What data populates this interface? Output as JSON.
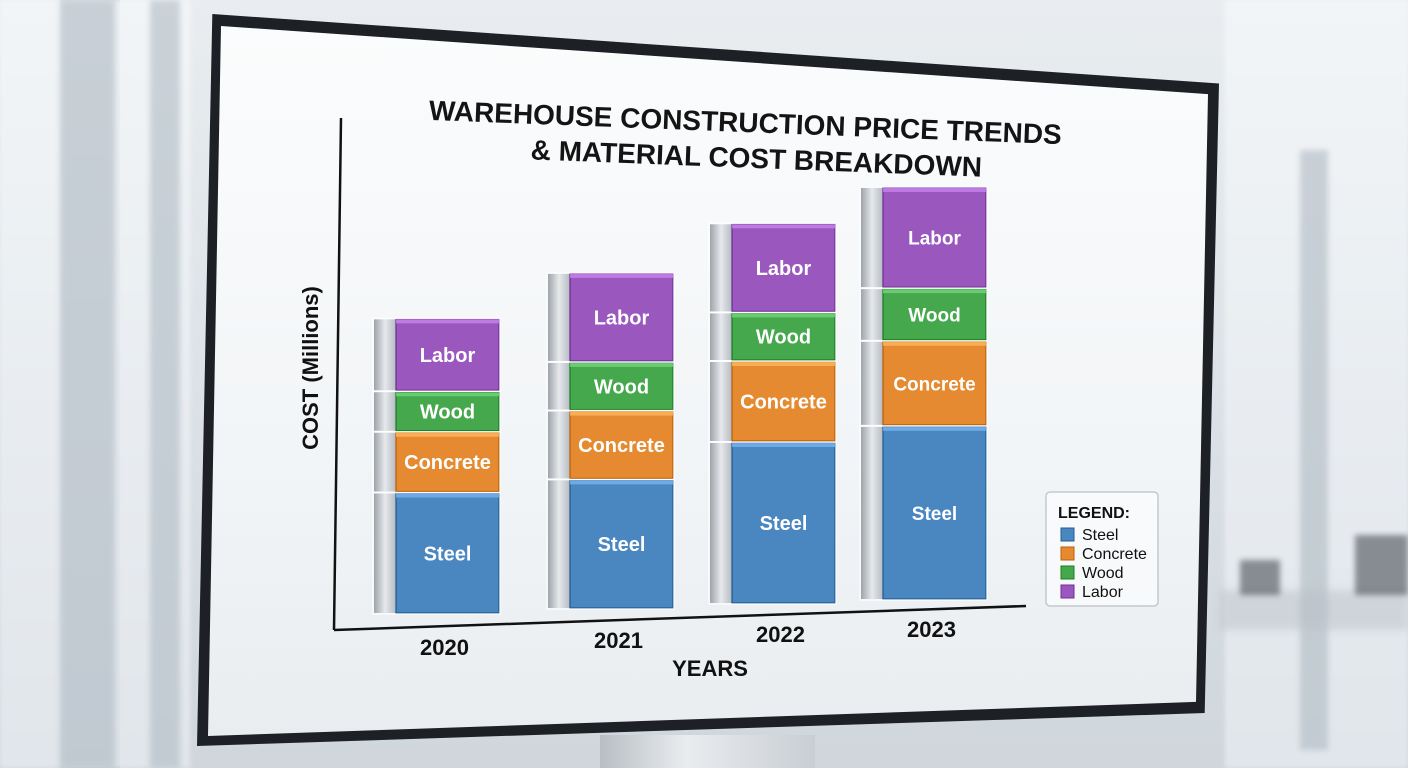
{
  "chart_data": {
    "type": "bar",
    "stacked": true,
    "title": [
      "WAREHOUSE CONSTRUCTION PRICE TRENDS",
      "& MATERIAL COST BREAKDOWN"
    ],
    "xlabel": "YEARS",
    "ylabel": "COST (Millions)",
    "categories": [
      "2020",
      "2021",
      "2022",
      "2023"
    ],
    "series": [
      {
        "name": "Steel",
        "color": "#4a86c0",
        "values": [
          3.0,
          3.2,
          4.0,
          4.3
        ]
      },
      {
        "name": "Concrete",
        "color": "#e58a30",
        "values": [
          1.5,
          1.7,
          2.0,
          2.1
        ]
      },
      {
        "name": "Wood",
        "color": "#45a84d",
        "values": [
          1.0,
          1.2,
          1.2,
          1.3
        ]
      },
      {
        "name": "Labor",
        "color": "#9a58bf",
        "values": [
          1.8,
          2.2,
          2.2,
          2.5
        ]
      }
    ],
    "legend": {
      "title": "LEGEND:",
      "position": "bottom-right"
    },
    "grid": false
  }
}
